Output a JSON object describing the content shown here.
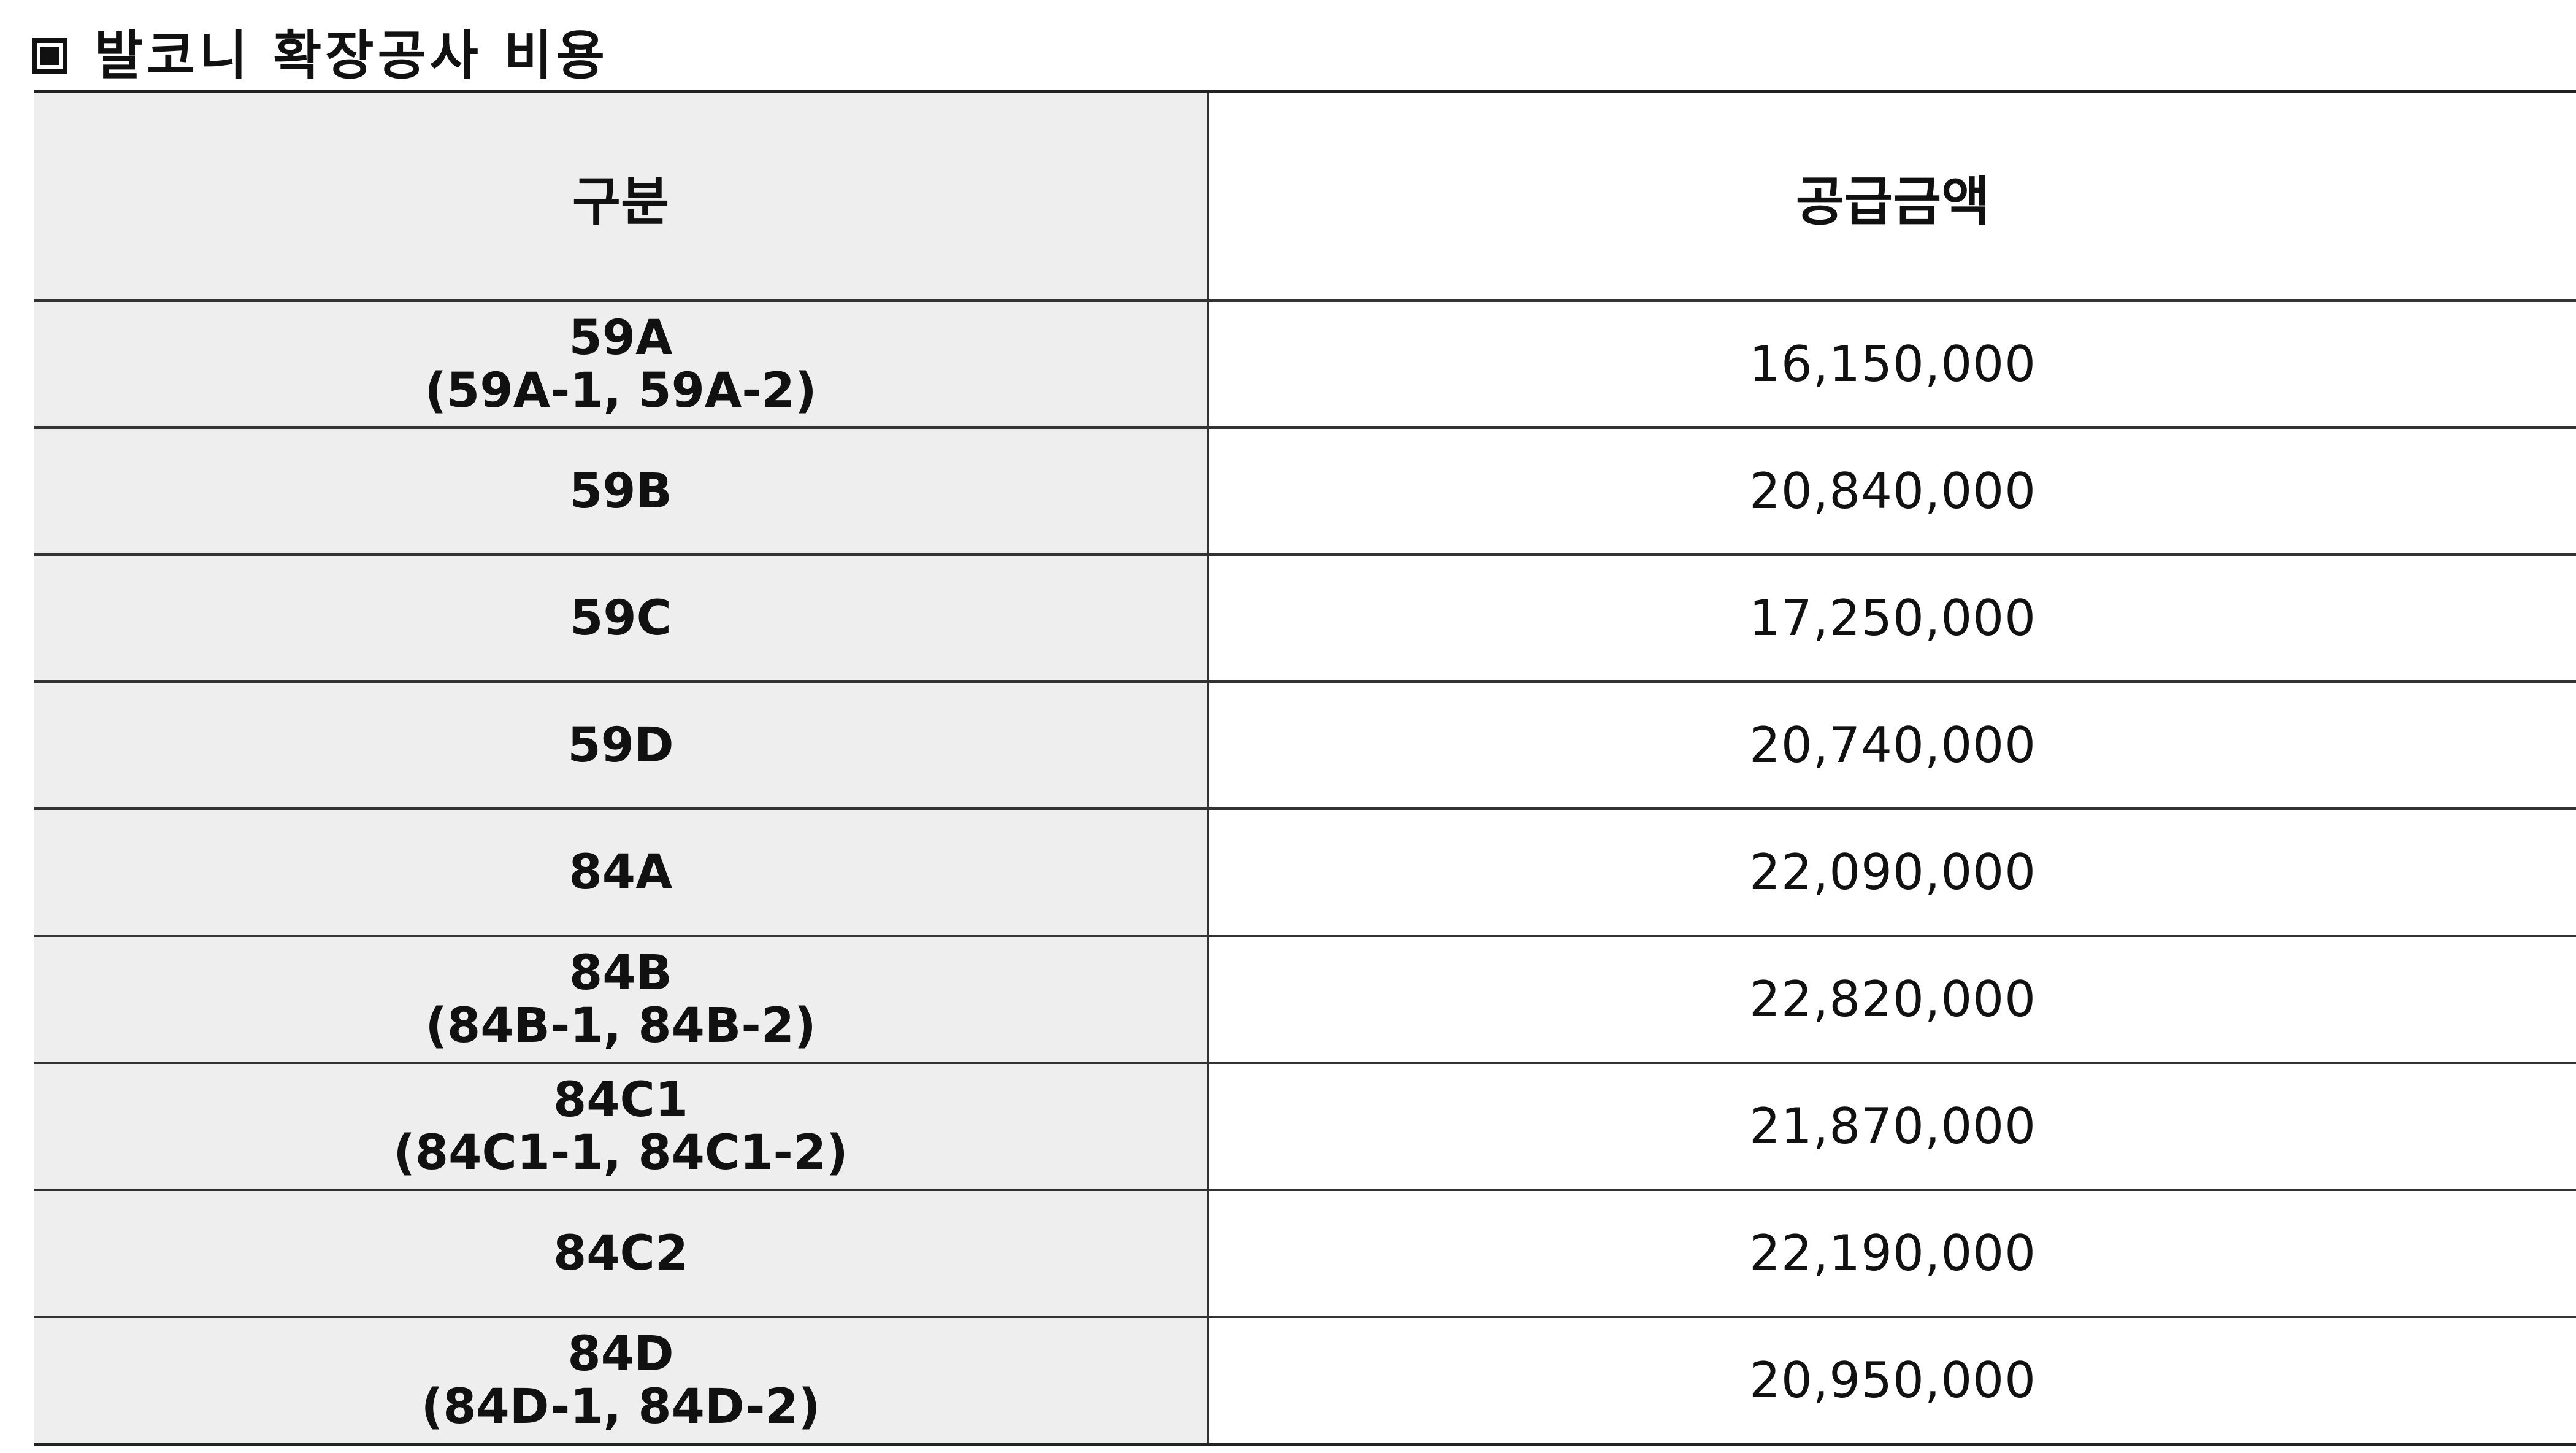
{
  "title": {
    "marker_icon": "square-bullet-icon",
    "text": "발코니 확장공사 비용"
  },
  "table": {
    "headers": [
      "구분",
      "공급금액"
    ],
    "rows": [
      {
        "type": "59A",
        "sub": "(59A-1, 59A-2)",
        "amount": "16,150,000"
      },
      {
        "type": "59B",
        "sub": "",
        "amount": "20,840,000"
      },
      {
        "type": "59C",
        "sub": "",
        "amount": "17,250,000"
      },
      {
        "type": "59D",
        "sub": "",
        "amount": "20,740,000"
      },
      {
        "type": "84A",
        "sub": "",
        "amount": "22,090,000"
      },
      {
        "type": "84B",
        "sub": "(84B-1, 84B-2)",
        "amount": "22,820,000"
      },
      {
        "type": "84C1",
        "sub": "(84C1-1, 84C1-2)",
        "amount": "21,870,000"
      },
      {
        "type": "84C2",
        "sub": "",
        "amount": "22,190,000"
      },
      {
        "type": "84D",
        "sub": "(84D-1, 84D-2)",
        "amount": "20,950,000"
      }
    ]
  },
  "colors": {
    "header_bg": "#eeeeee",
    "label_bg": "#eeeeee",
    "border": "#333333",
    "text": "#111111"
  }
}
